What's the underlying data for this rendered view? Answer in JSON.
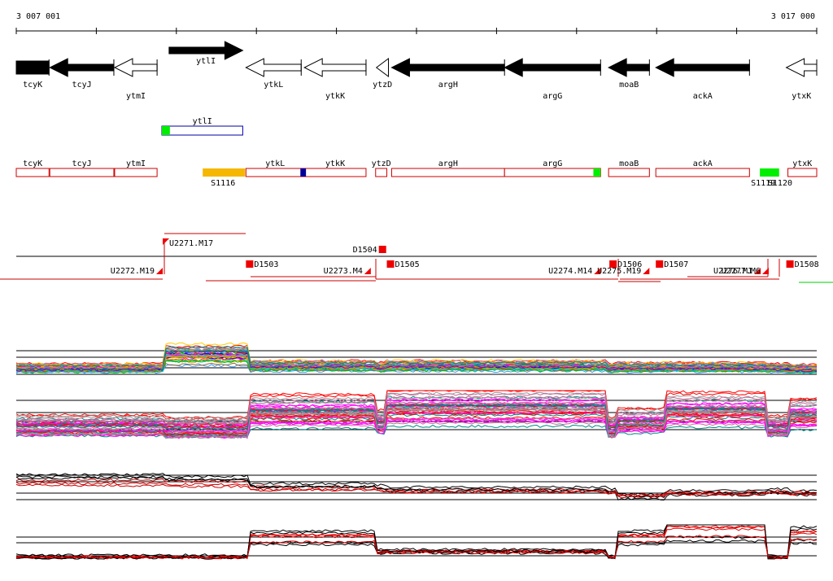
{
  "ruler": {
    "start_label": "3 007 001",
    "end_label": "3 017 000",
    "start": 3007001,
    "end": 3017000
  },
  "genes": [
    {
      "name": "tcyK",
      "start": 3007001,
      "end": 3007410,
      "strand": "-",
      "filled": true,
      "label_row": "low"
    },
    {
      "name": "tcyJ",
      "start": 3007420,
      "end": 3008220,
      "strand": "-",
      "filled": true,
      "label_row": "low"
    },
    {
      "name": "ytmI",
      "start": 3008230,
      "end": 3008760,
      "strand": "-",
      "filled": false,
      "label_row": "high"
    },
    {
      "name": "ytlI",
      "start": 3008910,
      "end": 3009830,
      "strand": "+",
      "filled": true,
      "label_row": "top"
    },
    {
      "name": "ytkL",
      "start": 3009870,
      "end": 3010560,
      "strand": "-",
      "filled": false,
      "label_row": "low"
    },
    {
      "name": "ytkK",
      "start": 3010600,
      "end": 3011370,
      "strand": "-",
      "filled": false,
      "label_row": "high"
    },
    {
      "name": "ytzD",
      "start": 3011500,
      "end": 3011650,
      "strand": "-",
      "filled": false,
      "label_row": "low"
    },
    {
      "name": "argH",
      "start": 3011690,
      "end": 3013100,
      "strand": "-",
      "filled": true,
      "label_row": "low"
    },
    {
      "name": "argG",
      "start": 3013100,
      "end": 3014300,
      "strand": "-",
      "filled": true,
      "label_row": "high"
    },
    {
      "name": "moaB",
      "start": 3014400,
      "end": 3014910,
      "strand": "-",
      "filled": true,
      "label_row": "low"
    },
    {
      "name": "ackA",
      "start": 3014990,
      "end": 3016160,
      "strand": "-",
      "filled": true,
      "label_row": "high"
    },
    {
      "name": "ytxK",
      "start": 3016620,
      "end": 3017000,
      "strand": "-",
      "filled": false,
      "label_row": "high"
    }
  ],
  "focus_gene": {
    "name": "ytlI",
    "start": 3008820,
    "end": 3009830,
    "mark_start": 3008820,
    "mark_end": 3008920,
    "mark_color": "#00ee00"
  },
  "annotation_boxes": [
    {
      "name": "tcyK",
      "start": 3007001,
      "end": 3007410
    },
    {
      "name": "tcyJ",
      "start": 3007420,
      "end": 3008220
    },
    {
      "name": "ytmI",
      "start": 3008230,
      "end": 3008760
    },
    {
      "name": "ytkL",
      "start": 3009870,
      "end": 3010600
    },
    {
      "name": "ytkK",
      "start": 3010600,
      "end": 3011370
    },
    {
      "name": "ytzD",
      "start": 3011490,
      "end": 3011630
    },
    {
      "name": "argH",
      "start": 3011690,
      "end": 3013100
    },
    {
      "name": "argG",
      "start": 3013100,
      "end": 3014300
    },
    {
      "name": "moaB",
      "start": 3014400,
      "end": 3014910
    },
    {
      "name": "ackA",
      "start": 3014990,
      "end": 3016160
    },
    {
      "name": "ytxK",
      "start": 3016640,
      "end": 3017000
    }
  ],
  "box_marks": [
    {
      "start": 3010550,
      "end": 3010620,
      "color": "#000099"
    },
    {
      "start": 3014210,
      "end": 3014300,
      "color": "#00ee00"
    }
  ],
  "features": [
    {
      "label": "S1116",
      "start": 3009330,
      "end": 3009860,
      "color": "#f5b700"
    },
    {
      "label": "S1119",
      "start": 3016290,
      "end": 3016420,
      "color": "#00ee00"
    },
    {
      "label": "S1120",
      "start": 3016400,
      "end": 3016530,
      "color": "#00ee00"
    }
  ],
  "upstream_labels": [
    {
      "label": "U2271.M17",
      "pos": 3008830,
      "row": "above"
    },
    {
      "label": "U2272.M19",
      "pos": 3008830,
      "row": "below"
    },
    {
      "label": "U2273.M4",
      "pos": 3011430,
      "row": "below"
    },
    {
      "label": "U2274.M14",
      "pos": 3014300,
      "row": "below"
    },
    {
      "label": "U2275.M19",
      "pos": 3014910,
      "row": "below"
    },
    {
      "label": "U2276.M1",
      "pos": 3016300,
      "row": "below"
    },
    {
      "label": "U2277.M6",
      "pos": 3016400,
      "row": "below"
    }
  ],
  "downstream_labels": [
    {
      "label": "D1503",
      "pos": 3009870
    },
    {
      "label": "D1504",
      "pos": 3011530
    },
    {
      "label": "D1505",
      "pos": 3011630
    },
    {
      "label": "D1506",
      "pos": 3014410
    },
    {
      "label": "D1507",
      "pos": 3014990
    },
    {
      "label": "D1508",
      "pos": 3016620
    }
  ],
  "legend_colors": {
    "filled_gene": "#000000",
    "outline_gene": "#000000",
    "annotation_box": "#cc0000",
    "focus_box": "#0000aa",
    "segment_line": "#cc0000",
    "terminator": "#ee0000",
    "reference_line": "#000000"
  }
}
